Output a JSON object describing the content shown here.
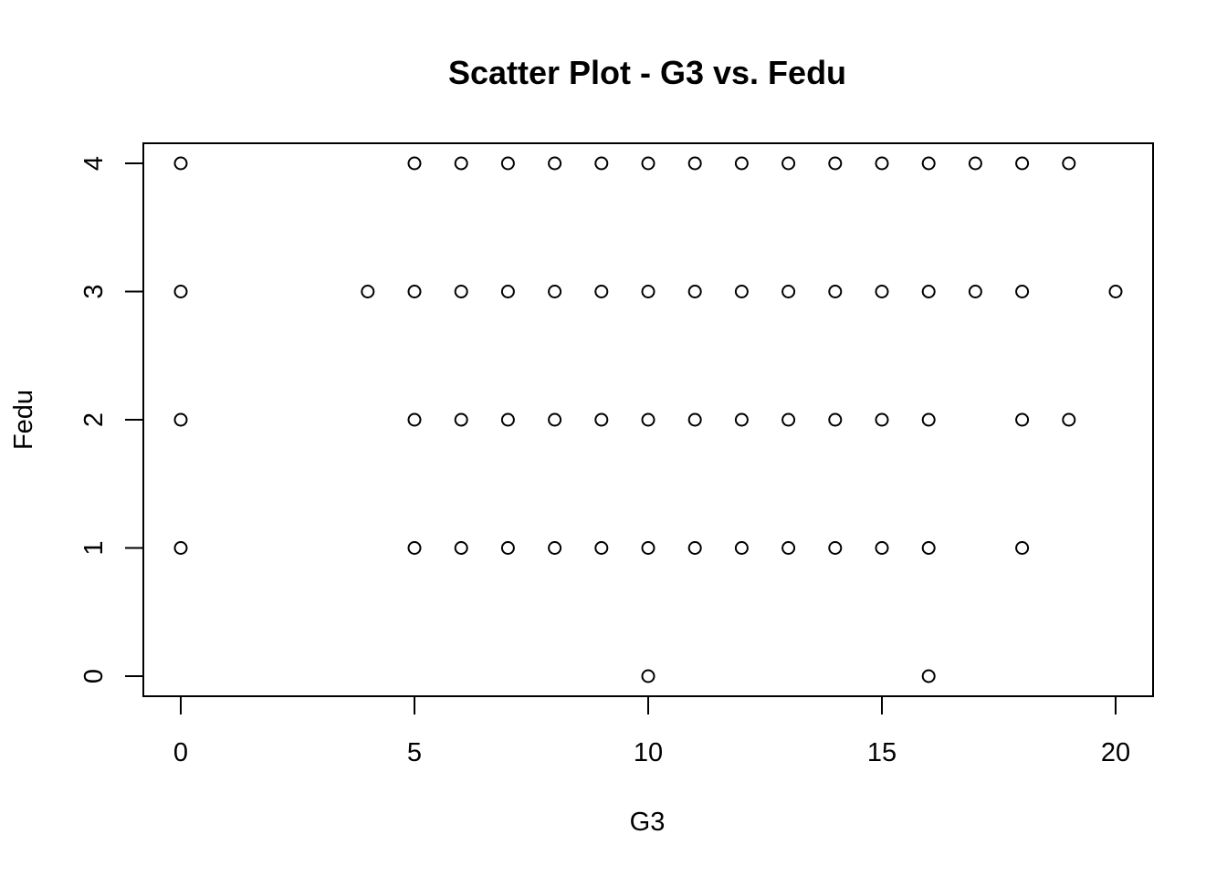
{
  "chart_data": {
    "type": "scatter",
    "title": "Scatter Plot - G3 vs. Fedu",
    "xlabel": "G3",
    "ylabel": "Fedu",
    "xlim": [
      0,
      20
    ],
    "ylim": [
      0,
      4
    ],
    "xticks": [
      0,
      5,
      10,
      15,
      20
    ],
    "yticks": [
      0,
      1,
      2,
      3,
      4
    ],
    "grid": false,
    "marker": "open-circle",
    "points": [
      {
        "x": 0,
        "y": 4
      },
      {
        "x": 5,
        "y": 4
      },
      {
        "x": 6,
        "y": 4
      },
      {
        "x": 7,
        "y": 4
      },
      {
        "x": 8,
        "y": 4
      },
      {
        "x": 9,
        "y": 4
      },
      {
        "x": 10,
        "y": 4
      },
      {
        "x": 11,
        "y": 4
      },
      {
        "x": 12,
        "y": 4
      },
      {
        "x": 13,
        "y": 4
      },
      {
        "x": 14,
        "y": 4
      },
      {
        "x": 15,
        "y": 4
      },
      {
        "x": 16,
        "y": 4
      },
      {
        "x": 17,
        "y": 4
      },
      {
        "x": 18,
        "y": 4
      },
      {
        "x": 19,
        "y": 4
      },
      {
        "x": 0,
        "y": 3
      },
      {
        "x": 4,
        "y": 3
      },
      {
        "x": 5,
        "y": 3
      },
      {
        "x": 6,
        "y": 3
      },
      {
        "x": 7,
        "y": 3
      },
      {
        "x": 8,
        "y": 3
      },
      {
        "x": 9,
        "y": 3
      },
      {
        "x": 10,
        "y": 3
      },
      {
        "x": 11,
        "y": 3
      },
      {
        "x": 12,
        "y": 3
      },
      {
        "x": 13,
        "y": 3
      },
      {
        "x": 14,
        "y": 3
      },
      {
        "x": 15,
        "y": 3
      },
      {
        "x": 16,
        "y": 3
      },
      {
        "x": 17,
        "y": 3
      },
      {
        "x": 18,
        "y": 3
      },
      {
        "x": 20,
        "y": 3
      },
      {
        "x": 0,
        "y": 2
      },
      {
        "x": 5,
        "y": 2
      },
      {
        "x": 6,
        "y": 2
      },
      {
        "x": 7,
        "y": 2
      },
      {
        "x": 8,
        "y": 2
      },
      {
        "x": 9,
        "y": 2
      },
      {
        "x": 10,
        "y": 2
      },
      {
        "x": 11,
        "y": 2
      },
      {
        "x": 12,
        "y": 2
      },
      {
        "x": 13,
        "y": 2
      },
      {
        "x": 14,
        "y": 2
      },
      {
        "x": 15,
        "y": 2
      },
      {
        "x": 16,
        "y": 2
      },
      {
        "x": 18,
        "y": 2
      },
      {
        "x": 19,
        "y": 2
      },
      {
        "x": 0,
        "y": 1
      },
      {
        "x": 5,
        "y": 1
      },
      {
        "x": 6,
        "y": 1
      },
      {
        "x": 7,
        "y": 1
      },
      {
        "x": 8,
        "y": 1
      },
      {
        "x": 9,
        "y": 1
      },
      {
        "x": 10,
        "y": 1
      },
      {
        "x": 11,
        "y": 1
      },
      {
        "x": 12,
        "y": 1
      },
      {
        "x": 13,
        "y": 1
      },
      {
        "x": 14,
        "y": 1
      },
      {
        "x": 15,
        "y": 1
      },
      {
        "x": 16,
        "y": 1
      },
      {
        "x": 18,
        "y": 1
      },
      {
        "x": 10,
        "y": 0
      },
      {
        "x": 16,
        "y": 0
      }
    ]
  }
}
